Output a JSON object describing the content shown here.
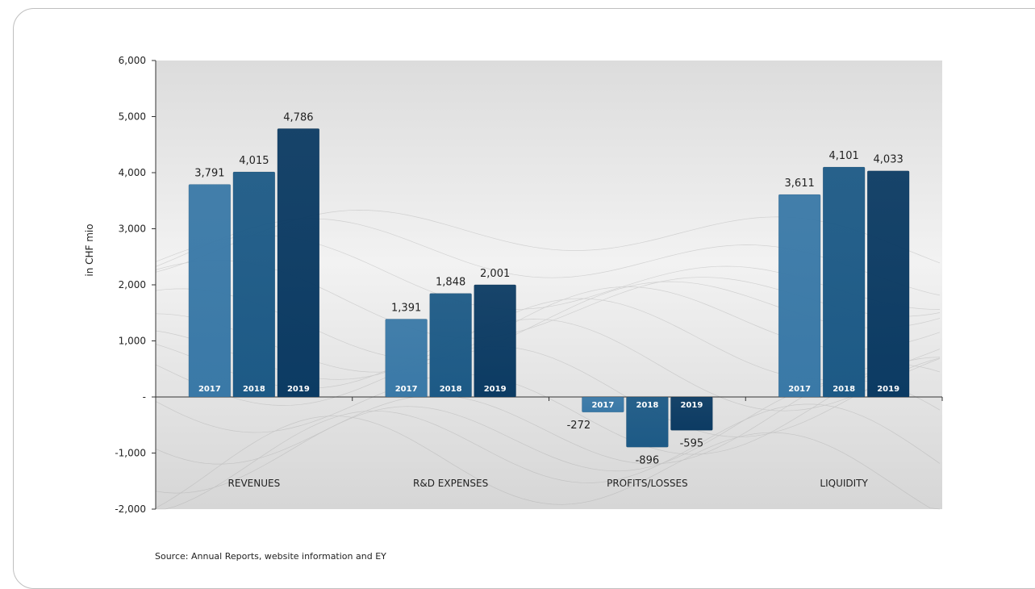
{
  "source_note": "Source: Annual Reports, website information and EY",
  "colors": {
    "2017": "#3a79a7",
    "2018": "#1d5a86",
    "2019": "#0c3b63",
    "background": "#e8e8e8"
  },
  "chart_data": {
    "type": "bar",
    "title": "",
    "xlabel": "",
    "ylabel": "in CHF mio",
    "ylim": [
      -2000,
      6000
    ],
    "yticks": [
      6000,
      5000,
      4000,
      3000,
      2000,
      1000,
      0,
      -1000,
      -2000
    ],
    "ytick_labels": [
      "6,000",
      "5,000",
      "4,000",
      "3,000",
      "2,000",
      "1,000",
      "-",
      "-1,000",
      "-2,000"
    ],
    "categories": [
      "REVENUES",
      "R&D EXPENSES",
      "PROFITS/LOSSES",
      "LIQUIDITY"
    ],
    "series": [
      {
        "name": "2017",
        "values": [
          3791,
          1391,
          -272,
          3611
        ],
        "labels": [
          "3,791",
          "1,391",
          "-272",
          "3,611"
        ]
      },
      {
        "name": "2018",
        "values": [
          4015,
          1848,
          -896,
          4101
        ],
        "labels": [
          "4,015",
          "1,848",
          "-896",
          "4,101"
        ]
      },
      {
        "name": "2019",
        "values": [
          4786,
          2001,
          -595,
          4033
        ],
        "labels": [
          "4,786",
          "2,001",
          "-595",
          "4,033"
        ]
      }
    ],
    "grid": false,
    "legend": "inside-bars"
  }
}
